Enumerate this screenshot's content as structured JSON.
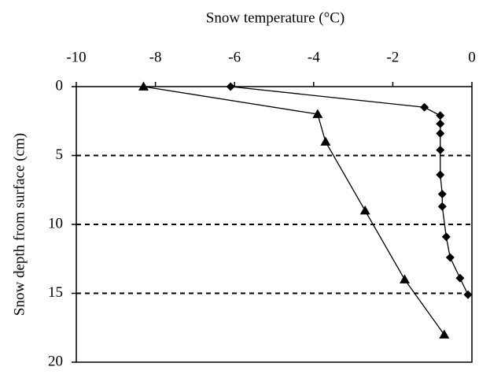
{
  "chart_data": {
    "type": "scatter-line",
    "xlabel": "Snow temperature (°C)",
    "ylabel": "Snow depth from surface (cm)",
    "xlim": [
      -10,
      0
    ],
    "xticks": [
      -10,
      -8,
      -6,
      -4,
      -2,
      0
    ],
    "ylim": [
      0,
      20
    ],
    "yticks": [
      0,
      5,
      10,
      15,
      20
    ],
    "y_inverted": true,
    "grid": true,
    "grid_style": "dashed",
    "series": [
      {
        "color": "#000000",
        "marker": "diamond",
        "x": [
          -6.1,
          -1.2,
          -0.8,
          -0.8,
          -0.8,
          -0.8,
          -0.8,
          -0.75,
          -0.75,
          -0.65,
          -0.55,
          -0.3,
          -0.1
        ],
        "values": [
          0,
          1.5,
          2.1,
          2.7,
          3.4,
          4.6,
          6.4,
          7.8,
          8.7,
          10.9,
          12.4,
          13.9,
          15.1
        ]
      },
      {
        "color": "#000000",
        "marker": "triangle",
        "x": [
          -8.3,
          -3.9,
          -3.7,
          -2.7,
          -1.7,
          -0.7
        ],
        "values": [
          0,
          2,
          4,
          9,
          14,
          18
        ]
      }
    ]
  }
}
